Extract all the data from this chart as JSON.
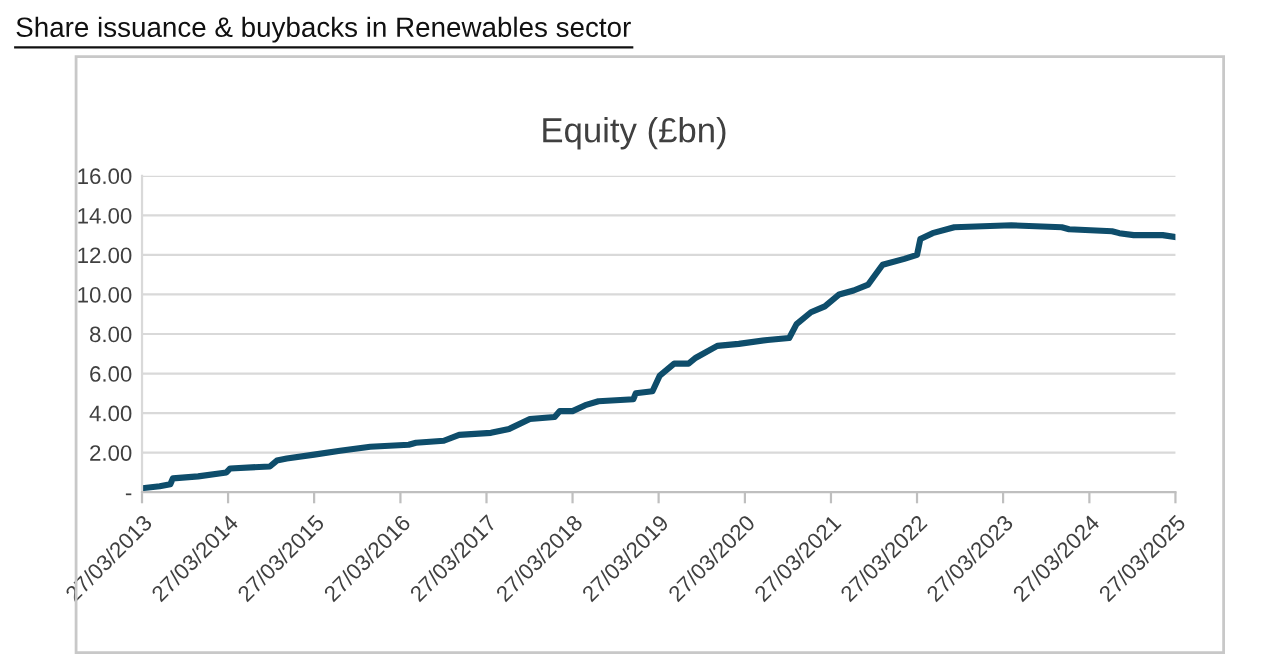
{
  "chart_data": {
    "type": "line",
    "title": "Share issuance & buybacks in Renewables sector",
    "subtitle": "Equity (£bn)",
    "x": [
      "2013-03-27",
      "2013-06-10",
      "2013-07-25",
      "2013-08-05",
      "2013-11-20",
      "2014-03-20",
      "2014-04-05",
      "2014-09-20",
      "2014-10-20",
      "2014-12-01",
      "2015-03-27",
      "2015-07-15",
      "2015-11-20",
      "2016-05-01",
      "2016-06-01",
      "2016-09-27",
      "2016-12-01",
      "2017-04-15",
      "2017-07-01",
      "2017-09-27",
      "2018-01-10",
      "2018-02-01",
      "2018-03-27",
      "2018-05-20",
      "2018-07-15",
      "2018-12-10",
      "2018-12-20",
      "2019-03-01",
      "2019-04-01",
      "2019-06-01",
      "2019-08-01",
      "2019-09-01",
      "2019-12-01",
      "2020-03-01",
      "2020-07-01",
      "2020-10-01",
      "2020-11-01",
      "2021-01-01",
      "2021-03-01",
      "2021-05-01",
      "2021-07-01",
      "2021-09-01",
      "2021-10-01",
      "2021-11-01",
      "2022-02-01",
      "2022-03-27",
      "2022-04-10",
      "2022-06-01",
      "2022-09-01",
      "2023-05-01",
      "2023-12-01",
      "2024-01-01",
      "2024-07-01",
      "2024-08-01",
      "2024-10-01",
      "2025-02-01",
      "2025-03-27"
    ],
    "series": [
      {
        "color": "#0e4d6b",
        "values": [
          0.2,
          0.3,
          0.4,
          0.7,
          0.8,
          1.0,
          1.2,
          1.3,
          1.6,
          1.7,
          1.9,
          2.1,
          2.3,
          2.4,
          2.5,
          2.6,
          2.9,
          3.0,
          3.2,
          3.7,
          3.8,
          4.1,
          4.1,
          4.4,
          4.6,
          4.7,
          5.0,
          5.1,
          5.9,
          6.5,
          6.5,
          6.8,
          7.4,
          7.5,
          7.7,
          7.8,
          8.5,
          9.1,
          9.4,
          10.0,
          10.2,
          10.5,
          11.0,
          11.5,
          11.8,
          12.0,
          12.8,
          13.1,
          13.4,
          13.5,
          13.4,
          13.3,
          13.2,
          13.1,
          13.0,
          13.0,
          12.9
        ]
      }
    ],
    "xlim": [
      "2013-03-27",
      "2025-03-27"
    ],
    "xticks": [
      {
        "value": "2013-03-27",
        "label": "27/03/2013"
      },
      {
        "value": "2014-03-27",
        "label": "27/03/2014"
      },
      {
        "value": "2015-03-27",
        "label": "27/03/2015"
      },
      {
        "value": "2016-03-27",
        "label": "27/03/2016"
      },
      {
        "value": "2017-03-27",
        "label": "27/03/2017"
      },
      {
        "value": "2018-03-27",
        "label": "27/03/2018"
      },
      {
        "value": "2019-03-27",
        "label": "27/03/2019"
      },
      {
        "value": "2020-03-27",
        "label": "27/03/2020"
      },
      {
        "value": "2021-03-27",
        "label": "27/03/2021"
      },
      {
        "value": "2022-03-27",
        "label": "27/03/2022"
      },
      {
        "value": "2023-03-27",
        "label": "27/03/2023"
      },
      {
        "value": "2024-03-27",
        "label": "27/03/2024"
      },
      {
        "value": "2025-03-27",
        "label": "27/03/2025"
      }
    ],
    "ylim": [
      0,
      16
    ],
    "yticks": [
      {
        "value": 0,
        "label": "-"
      },
      {
        "value": 2,
        "label": "2.00"
      },
      {
        "value": 4,
        "label": "4.00"
      },
      {
        "value": 6,
        "label": "6.00"
      },
      {
        "value": 8,
        "label": "8.00"
      },
      {
        "value": 10,
        "label": "10.00"
      },
      {
        "value": 12,
        "label": "12.00"
      },
      {
        "value": 14,
        "label": "14.00"
      },
      {
        "value": 16,
        "label": "16.00"
      }
    ],
    "grid": "y",
    "marker": "none",
    "line_style": "solid"
  }
}
